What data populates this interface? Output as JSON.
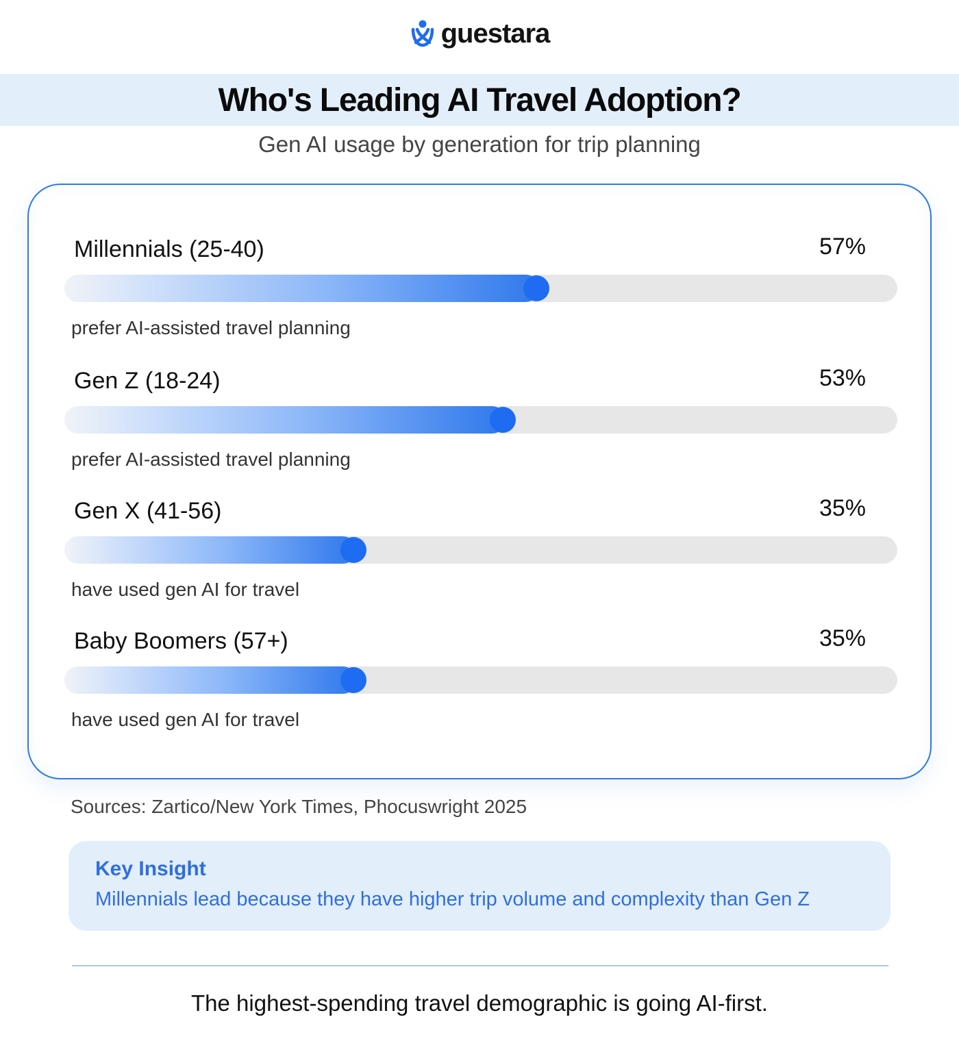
{
  "brand": {
    "name": "guestara",
    "icon": "guestara-logo-icon",
    "accent": "#1e6cf2"
  },
  "header": {
    "title": "Who's Leading AI Travel Adoption?",
    "subtitle": "Gen AI usage by generation for trip planning"
  },
  "chart_data": {
    "type": "bar",
    "orientation": "horizontal",
    "xlim": [
      0,
      100
    ],
    "unit": "%",
    "categories": [
      "Millennials (25-40)",
      "Gen Z (18-24)",
      "Gen X (41-56)",
      "Baby Boomers (57+)"
    ],
    "values": [
      57,
      53,
      35,
      35
    ],
    "value_labels": [
      "57%",
      "53%",
      "35%",
      "35%"
    ],
    "notes": [
      "prefer AI-assisted travel planning",
      "prefer AI-assisted travel planning",
      "have used gen AI for travel",
      "have used gen AI for travel"
    ]
  },
  "sources": "Sources: Zartico/New York Times, Phocuswright 2025",
  "insight": {
    "title": "Key Insight",
    "text": "Millennials lead because they have higher trip volume and complexity than Gen Z"
  },
  "tagline": "The highest-spending travel demographic is going AI-first."
}
